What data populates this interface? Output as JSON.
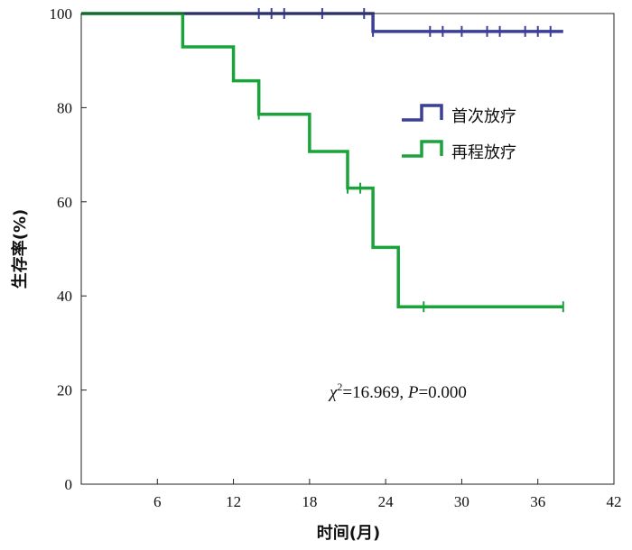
{
  "chart_data": {
    "type": "line",
    "title": "",
    "xlabel": "时间(月)",
    "ylabel": "生存率(%)",
    "xlim": [
      0,
      42
    ],
    "ylim": [
      0,
      100
    ],
    "xticks": [
      6,
      12,
      18,
      24,
      30,
      36,
      42
    ],
    "yticks": [
      0,
      20,
      40,
      60,
      80,
      100
    ],
    "grid": false,
    "legend_position": "top-right",
    "annotation": {
      "chi_symbol": "χ",
      "chi_sup": "2",
      "chi_value": "=16.969, ",
      "p_symbol": "P",
      "p_value": "=0.000"
    },
    "series": [
      {
        "name": "首次放疗",
        "color": "#3a3f9a",
        "steps": [
          [
            0,
            100
          ],
          [
            23,
            96.2
          ],
          [
            38,
            96.2
          ]
        ],
        "censored": [
          [
            14,
            100
          ],
          [
            15,
            100
          ],
          [
            16,
            100
          ],
          [
            19,
            100
          ],
          [
            22.3,
            100
          ],
          [
            23,
            96.2
          ],
          [
            27.5,
            96.2
          ],
          [
            28.5,
            96.2
          ],
          [
            30,
            96.2
          ],
          [
            32,
            96.2
          ],
          [
            33,
            96.2
          ],
          [
            35,
            96.2
          ],
          [
            36,
            96.2
          ],
          [
            37,
            96.2
          ]
        ]
      },
      {
        "name": "再程放疗",
        "color": "#1aa33a",
        "steps": [
          [
            0,
            100
          ],
          [
            8,
            92.9
          ],
          [
            12,
            85.7
          ],
          [
            14,
            78.6
          ],
          [
            18,
            70.7
          ],
          [
            21,
            62.9
          ],
          [
            23,
            50.3
          ],
          [
            25,
            37.7
          ],
          [
            38,
            37.7
          ]
        ],
        "censored": [
          [
            14,
            78.6
          ],
          [
            21,
            62.9
          ],
          [
            22,
            62.9
          ],
          [
            27,
            37.7
          ],
          [
            38,
            37.7
          ]
        ]
      }
    ]
  }
}
